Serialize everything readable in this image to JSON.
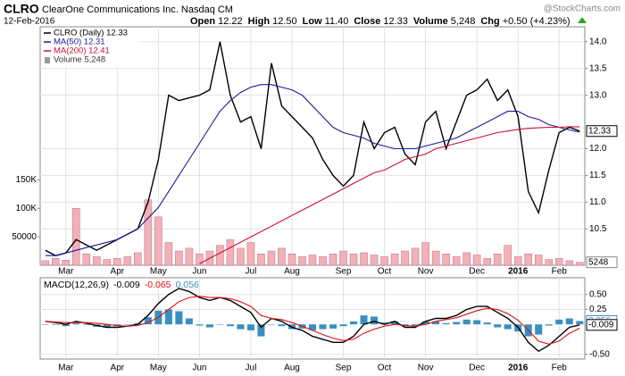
{
  "header": {
    "symbol": "CLRO",
    "name": "ClearOne Communications Inc. Nasdaq CM",
    "date": "12-Feb-2016",
    "brand": "@StockCharts.com",
    "quote": [
      {
        "label": "Open",
        "value": "12.22"
      },
      {
        "label": "High",
        "value": "12.50"
      },
      {
        "label": "Low",
        "value": "11.40"
      },
      {
        "label": "Close",
        "value": "12.33"
      },
      {
        "label": "Volume",
        "value": "5,248"
      },
      {
        "label": "Chg",
        "value": "+0.50 (+4.23%)"
      }
    ]
  },
  "chart_data": [
    {
      "type": "line",
      "grid": true,
      "categories": [
        null,
        null,
        "Mar",
        null,
        null,
        null,
        null,
        "Apr",
        null,
        null,
        null,
        "May",
        null,
        null,
        null,
        "Jun",
        null,
        null,
        null,
        null,
        "Jul",
        null,
        null,
        null,
        "Aug",
        null,
        null,
        null,
        null,
        "Sep",
        null,
        null,
        null,
        "Oct",
        null,
        null,
        null,
        "Nov",
        null,
        null,
        null,
        null,
        "Dec",
        null,
        null,
        null,
        "2016",
        null,
        null,
        null,
        "Feb",
        null,
        null
      ],
      "ylim": [
        9.82,
        14.28
      ],
      "yticks": [
        {
          "value": 14,
          "label": "14.0"
        },
        13.5,
        {
          "value": 13,
          "label": "13.0"
        },
        {
          "value": 12,
          "label": "12.0"
        },
        11.5,
        {
          "value": 11,
          "label": "11.0"
        },
        10.5
      ],
      "y2lim": [
        0,
        419000
      ],
      "y2ticks": [
        {
          "value": 150000,
          "label": "150K"
        },
        {
          "value": 100000,
          "label": "100K"
        },
        50000
      ],
      "series": [
        {
          "name": "CLRO (Daily) 12.33",
          "color": "#000000",
          "values": [
            10.1,
            10.0,
            10.05,
            10.3,
            10.2,
            10.1,
            10.2,
            10.3,
            10.4,
            10.5,
            11.0,
            11.8,
            13.0,
            12.9,
            12.95,
            13.0,
            13.1,
            14.0,
            13.0,
            12.5,
            12.6,
            12.0,
            13.6,
            12.8,
            12.6,
            12.4,
            12.2,
            11.8,
            11.5,
            11.3,
            11.5,
            12.5,
            12.0,
            12.3,
            12.4,
            11.9,
            11.7,
            12.5,
            12.7,
            12.0,
            12.5,
            13.0,
            13.1,
            13.3,
            12.9,
            13.1,
            12.6,
            11.2,
            10.8,
            11.6,
            12.3,
            12.4,
            12.33
          ]
        },
        {
          "name": "MA(50) 12.31",
          "color": "#1a1a9c",
          "values": [
            10.0,
            10.0,
            10.05,
            10.1,
            10.15,
            10.2,
            10.25,
            10.3,
            10.4,
            10.5,
            10.7,
            10.9,
            11.2,
            11.5,
            11.8,
            12.1,
            12.4,
            12.7,
            12.9,
            13.05,
            13.15,
            13.2,
            13.2,
            13.15,
            13.1,
            13.0,
            12.8,
            12.6,
            12.4,
            12.3,
            12.25,
            12.2,
            12.1,
            12.05,
            12.0,
            12.0,
            12.0,
            12.05,
            12.1,
            12.15,
            12.2,
            12.3,
            12.4,
            12.5,
            12.6,
            12.7,
            12.7,
            12.6,
            12.55,
            12.45,
            12.4,
            12.35,
            12.31
          ]
        },
        {
          "name": "MA(200) 12.41",
          "color": "#cc1133",
          "values": [
            null,
            null,
            null,
            null,
            null,
            null,
            null,
            null,
            null,
            null,
            null,
            null,
            null,
            null,
            null,
            9.85,
            9.95,
            10.05,
            10.15,
            10.25,
            10.35,
            10.45,
            10.55,
            10.65,
            10.75,
            10.85,
            10.95,
            11.05,
            11.15,
            11.25,
            11.35,
            11.45,
            11.55,
            11.6,
            11.7,
            11.8,
            11.85,
            11.9,
            12.0,
            12.05,
            12.1,
            12.15,
            12.2,
            12.25,
            12.3,
            12.33,
            12.36,
            12.38,
            12.39,
            12.4,
            12.4,
            12.41,
            12.41
          ]
        },
        {
          "name": "Volume 5,248",
          "type": "bar",
          "axis": "y2",
          "color": "#f2b0b8",
          "values": [
            8000,
            12000,
            9000,
            100000,
            20000,
            15000,
            10000,
            12000,
            15000,
            22000,
            115000,
            85000,
            40000,
            25000,
            30000,
            20000,
            25000,
            35000,
            45000,
            30000,
            40000,
            20000,
            25000,
            30000,
            20000,
            15000,
            18000,
            15000,
            20000,
            25000,
            20000,
            22000,
            18000,
            15000,
            20000,
            25000,
            30000,
            40000,
            25000,
            20000,
            15000,
            22000,
            18000,
            12000,
            20000,
            35000,
            15000,
            20000,
            18000,
            10000,
            12000,
            8000,
            5248
          ]
        }
      ]
    },
    {
      "type": "line",
      "grid": true,
      "label": "MACD(12,26,9)",
      "categories": [
        null,
        null,
        "Mar",
        null,
        null,
        null,
        null,
        "Apr",
        null,
        null,
        null,
        "May",
        null,
        null,
        null,
        "Jun",
        null,
        null,
        null,
        null,
        "Jul",
        null,
        null,
        null,
        "Aug",
        null,
        null,
        null,
        null,
        "Sep",
        null,
        null,
        null,
        "Oct",
        null,
        null,
        null,
        "Nov",
        null,
        null,
        null,
        null,
        "Dec",
        null,
        null,
        null,
        "2016",
        null,
        null,
        null,
        "Feb",
        null,
        null
      ],
      "ylim": [
        -0.58,
        0.78
      ],
      "yticks": [
        {
          "value": 0.5,
          "label": "0.50"
        },
        0.25,
        {
          "value": -0.5,
          "label": "-0.50"
        }
      ],
      "series": [
        {
          "name": "MACD",
          "color": "#000000",
          "values": [
            0.05,
            0.03,
            0.0,
            0.05,
            0.02,
            -0.02,
            -0.05,
            -0.05,
            -0.03,
            0.0,
            0.15,
            0.35,
            0.5,
            0.6,
            0.55,
            0.45,
            0.4,
            0.45,
            0.4,
            0.3,
            0.2,
            -0.05,
            0.1,
            0.05,
            -0.05,
            -0.1,
            -0.2,
            -0.25,
            -0.3,
            -0.3,
            -0.2,
            0.0,
            0.05,
            0.0,
            0.05,
            -0.05,
            -0.05,
            0.05,
            0.1,
            0.1,
            0.15,
            0.25,
            0.3,
            0.3,
            0.2,
            0.1,
            -0.05,
            -0.3,
            -0.45,
            -0.35,
            -0.2,
            -0.05,
            -0.009
          ]
        },
        {
          "name": "Signal",
          "color": "#e01010",
          "values": [
            0.05,
            0.04,
            0.03,
            0.03,
            0.03,
            0.02,
            0.0,
            -0.02,
            -0.03,
            -0.02,
            0.03,
            0.12,
            0.25,
            0.38,
            0.45,
            0.47,
            0.45,
            0.45,
            0.43,
            0.38,
            0.3,
            0.15,
            0.1,
            0.08,
            0.03,
            -0.03,
            -0.1,
            -0.17,
            -0.23,
            -0.27,
            -0.25,
            -0.15,
            -0.08,
            -0.03,
            0.0,
            -0.02,
            -0.03,
            0.0,
            0.05,
            0.08,
            0.11,
            0.17,
            0.23,
            0.27,
            0.25,
            0.18,
            0.07,
            -0.1,
            -0.28,
            -0.33,
            -0.28,
            -0.15,
            -0.065
          ]
        },
        {
          "name": "Histogram",
          "type": "bar",
          "color": "#3a8fc0",
          "values": [
            0,
            -0.01,
            -0.03,
            0.02,
            -0.01,
            -0.04,
            -0.05,
            -0.03,
            0,
            0.02,
            0.12,
            0.23,
            0.25,
            0.22,
            0.1,
            -0.02,
            -0.05,
            0,
            -0.03,
            -0.08,
            -0.1,
            -0.2,
            0,
            -0.03,
            -0.08,
            -0.07,
            -0.1,
            -0.08,
            -0.07,
            -0.03,
            0.05,
            0.15,
            0.13,
            0.03,
            0.05,
            -0.03,
            -0.02,
            0.05,
            0.05,
            0.02,
            0.04,
            0.08,
            0.07,
            0.03,
            -0.05,
            -0.08,
            -0.12,
            -0.2,
            -0.17,
            -0.02,
            0.08,
            0.1,
            0.056
          ]
        }
      ]
    }
  ]
}
